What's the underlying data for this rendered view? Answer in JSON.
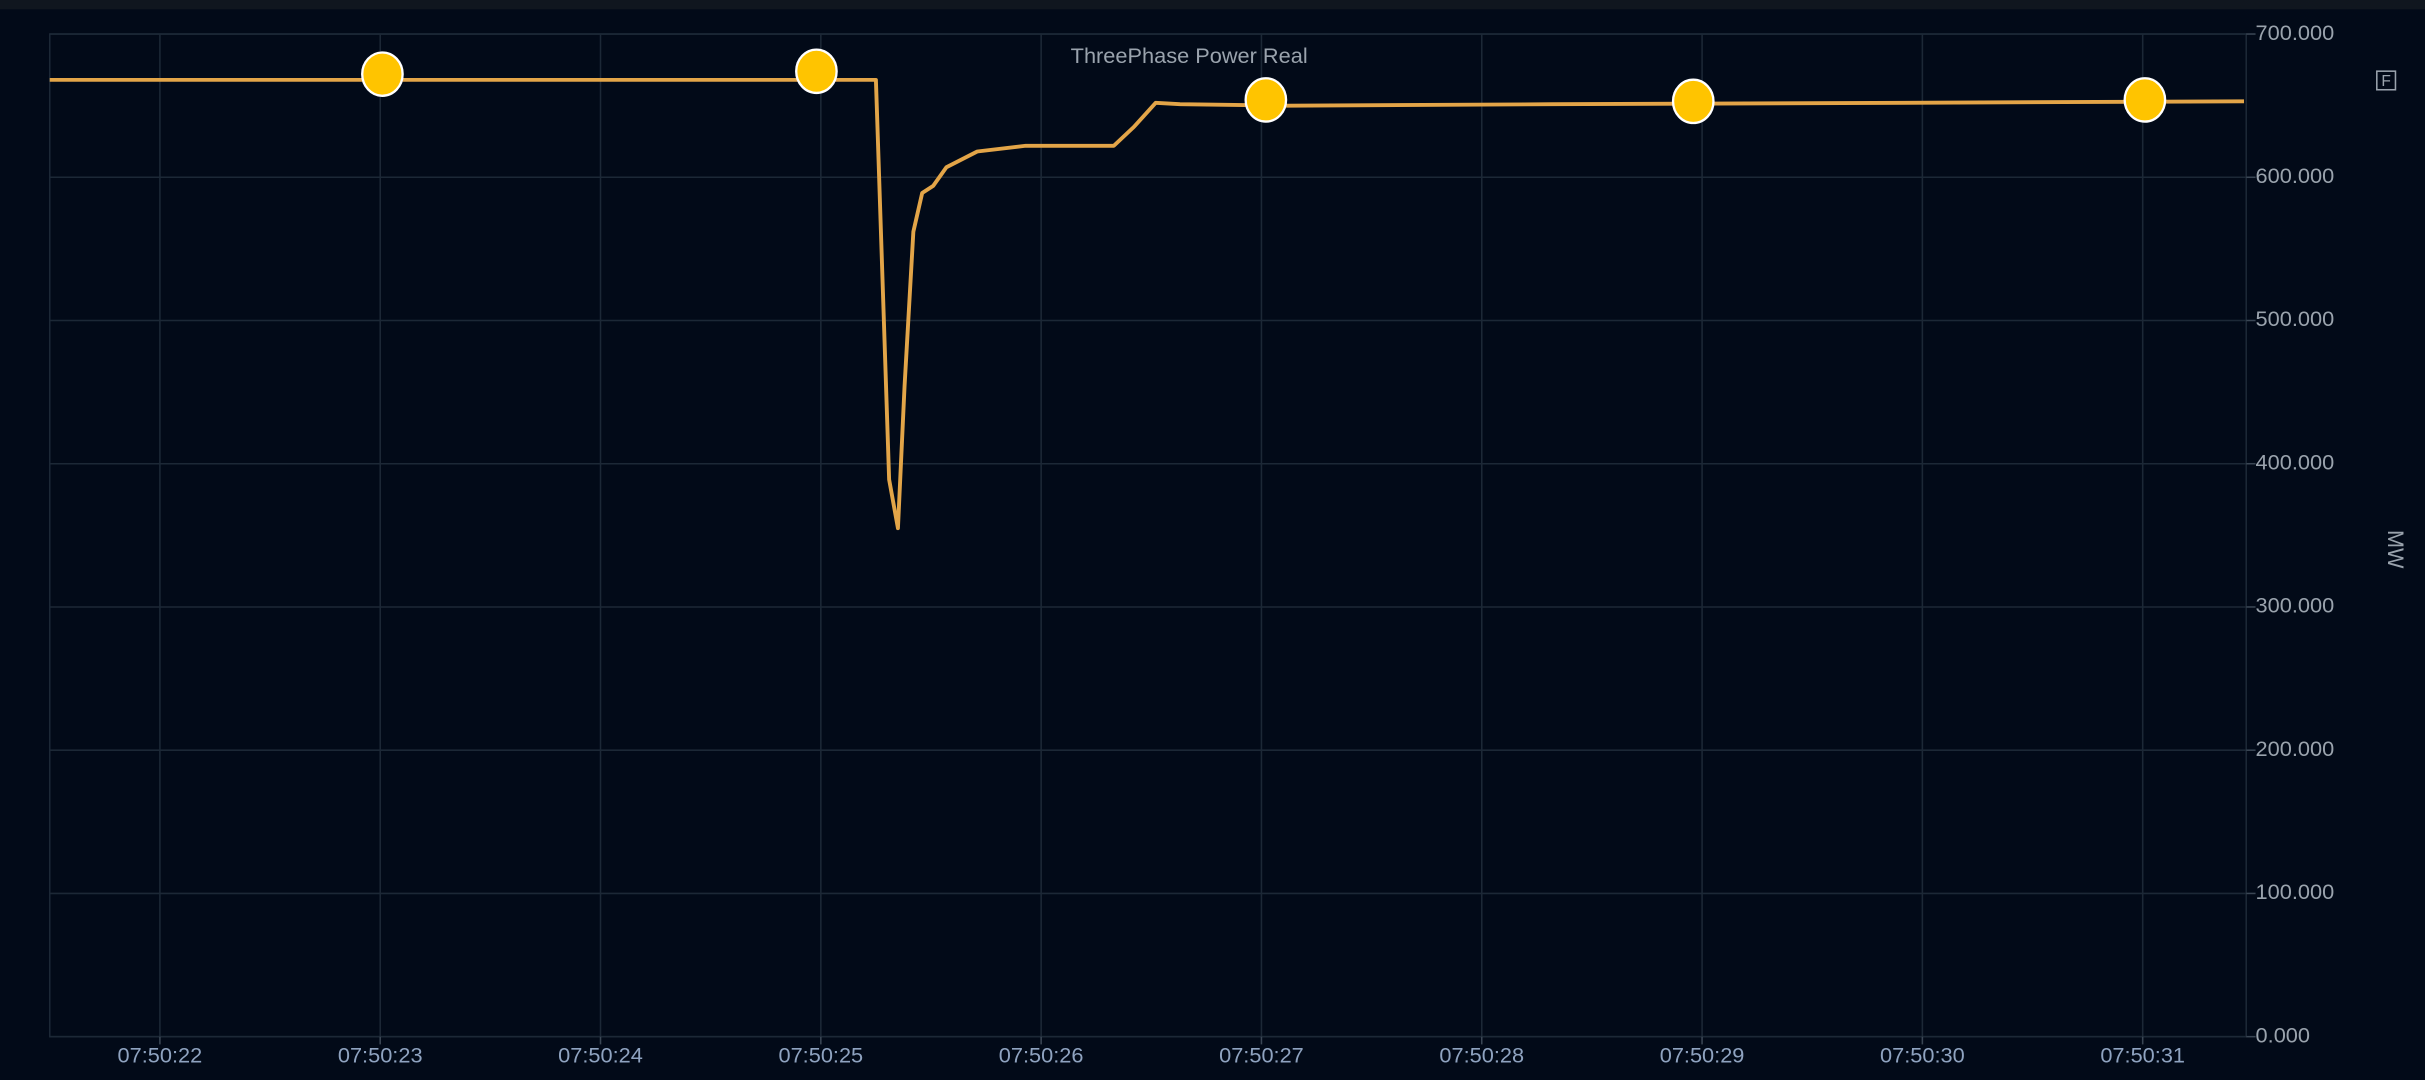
{
  "chart_data": {
    "type": "line",
    "title": "ThreePhase Power Real",
    "y_label": "MW",
    "icon_label": "F",
    "x": [
      "07:50:21.5",
      "07:50:25.25",
      "07:50:25.31",
      "07:50:25.35",
      "07:50:25.38",
      "07:50:25.42",
      "07:50:25.46",
      "07:50:25.51",
      "07:50:25.57",
      "07:50:25.71",
      "07:50:25.93",
      "07:50:26.33",
      "07:50:26.42",
      "07:50:26.52",
      "07:50:26.63",
      "07:50:27.12",
      "07:50:28.32",
      "07:50:31.46"
    ],
    "series": [
      {
        "name": "ThreePhase Power Real",
        "color": "#e3a548",
        "values": [
          668,
          668,
          389,
          355,
          454,
          562,
          589,
          594,
          607,
          618,
          622,
          622,
          635,
          652,
          651,
          650,
          651,
          653
        ]
      }
    ],
    "markers": {
      "color": "#ffc400",
      "x": [
        "07:50:23.01",
        "07:50:24.98",
        "07:50:27.02",
        "07:50:28.96",
        "07:50:31.01"
      ],
      "values": [
        672,
        674,
        654,
        653,
        654
      ]
    },
    "xlim": [
      "07:50:21.5",
      "07:50:31.47"
    ],
    "xticks": [
      "07:50:22",
      "07:50:23",
      "07:50:24",
      "07:50:25",
      "07:50:26",
      "07:50:27",
      "07:50:28",
      "07:50:29",
      "07:50:30",
      "07:50:31"
    ],
    "ylim": [
      0,
      700
    ],
    "yticks": [
      {
        "value": 0,
        "label": "0.000"
      },
      {
        "value": 100,
        "label": "100.000"
      },
      {
        "value": 200,
        "label": "200.000"
      },
      {
        "value": 300,
        "label": "300.000"
      },
      {
        "value": 400,
        "label": "400.000"
      },
      {
        "value": 500,
        "label": "500.000"
      },
      {
        "value": 600,
        "label": "600.000"
      },
      {
        "value": 700,
        "label": "700.000"
      }
    ],
    "grid": true
  }
}
